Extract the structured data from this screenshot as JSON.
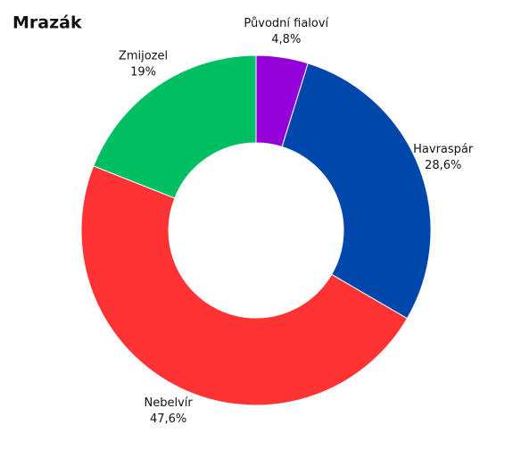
{
  "chart_data": {
    "type": "donut",
    "title": "Mrazák",
    "categories": [
      "Původní fialoví",
      "Havraspár",
      "Nebelvír",
      "Zmijozel"
    ],
    "values": [
      4.8,
      28.6,
      47.6,
      19
    ],
    "value_labels": [
      "4,8%",
      "28,6%",
      "47,6%",
      "19%"
    ],
    "colors": [
      "#9400d8",
      "#0047ab",
      "#ff3333",
      "#00bf63"
    ]
  }
}
